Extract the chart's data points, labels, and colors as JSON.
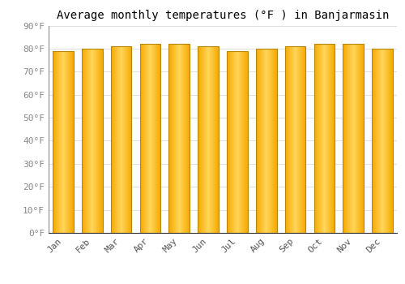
{
  "months": [
    "Jan",
    "Feb",
    "Mar",
    "Apr",
    "May",
    "Jun",
    "Jul",
    "Aug",
    "Sep",
    "Oct",
    "Nov",
    "Dec"
  ],
  "values": [
    79,
    80,
    81,
    82,
    82,
    81,
    79,
    80,
    81,
    82,
    82,
    80
  ],
  "title": "Average monthly temperatures (°F ) in Banjarmasin",
  "ylim": [
    0,
    90
  ],
  "yticks": [
    0,
    10,
    20,
    30,
    40,
    50,
    60,
    70,
    80,
    90
  ],
  "ytick_labels": [
    "0°F",
    "10°F",
    "20°F",
    "30°F",
    "40°F",
    "50°F",
    "60°F",
    "70°F",
    "80°F",
    "90°F"
  ],
  "bar_edge_color": "#B8860B",
  "bar_color_center": "#FFD55A",
  "bar_color_edge": "#F5A800",
  "bar_color_bottom": "#E08000",
  "background_color": "#FFFFFF",
  "grid_color": "#E0E0E0",
  "title_fontsize": 10,
  "tick_fontsize": 8,
  "font_family": "monospace",
  "bar_width": 0.72
}
